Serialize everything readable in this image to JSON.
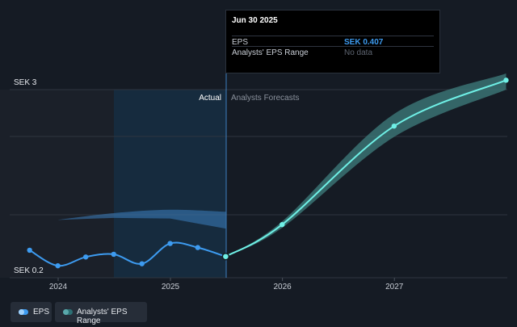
{
  "tooltip": {
    "date": "Jun 30 2025",
    "rows": [
      {
        "label": "EPS",
        "value": "SEK 0.407",
        "color": "#3d9bf0"
      },
      {
        "label": "Analysts' EPS Range",
        "value": "No data",
        "color": "#5d6470"
      }
    ]
  },
  "y_axis": {
    "top_label": "SEK 3",
    "bottom_label": "SEK 0.2"
  },
  "regions": {
    "actual_label": "Actual",
    "forecast_label": "Analysts Forecasts"
  },
  "legend": [
    {
      "label": "EPS",
      "color": "#3d9bf0",
      "dot_color": "#6cb4f5"
    },
    {
      "label": "Analysts' EPS Range",
      "color": "#2c6f73",
      "dot_color": "#3a8a8f"
    }
  ],
  "colors": {
    "actual": "#3d9bf0",
    "forecast": "#6ff0e6",
    "range_band": "#3f7f7d",
    "background": "#151b24",
    "shaded_past": "#1b2029",
    "shaded_highlight": "#17324a"
  },
  "chart_data": {
    "type": "line",
    "title": "",
    "xlabel": "",
    "ylabel": "",
    "x_ticks": [
      "2024",
      "2025",
      "2026",
      "2027"
    ],
    "ylim": [
      0.2,
      3
    ],
    "series": [
      {
        "name": "EPS",
        "points": [
          {
            "x": "2023-09-30",
            "y": 0.5
          },
          {
            "x": "2023-12-31",
            "y": 0.27
          },
          {
            "x": "2024-03-31",
            "y": 0.4
          },
          {
            "x": "2024-06-30",
            "y": 0.44
          },
          {
            "x": "2024-09-30",
            "y": 0.3
          },
          {
            "x": "2024-12-31",
            "y": 0.6
          },
          {
            "x": "2025-03-31",
            "y": 0.54
          },
          {
            "x": "2025-06-30",
            "y": 0.407
          }
        ]
      },
      {
        "name": "Analysts Forecasts",
        "points": [
          {
            "x": "2025-06-30",
            "y": 0.407
          },
          {
            "x": "2025-12-31",
            "y": 0.88
          },
          {
            "x": "2026-12-31",
            "y": 2.34
          },
          {
            "x": "2027-12-31",
            "y": 3.02
          }
        ]
      },
      {
        "name": "Analysts' EPS Range",
        "points_high": [
          {
            "x": "2023-12-31",
            "y": 0.95
          },
          {
            "x": "2024-06-30",
            "y": 1.05
          },
          {
            "x": "2024-12-31",
            "y": 1.1
          },
          {
            "x": "2025-06-30",
            "y": 1.07
          },
          {
            "x": "2026-12-31",
            "y": 2.52
          },
          {
            "x": "2027-12-31",
            "y": 3.12
          }
        ],
        "points_low": [
          {
            "x": "2024-06-30",
            "y": 0.98
          },
          {
            "x": "2024-12-31",
            "y": 0.97
          },
          {
            "x": "2025-06-30",
            "y": 0.82
          },
          {
            "x": "2026-12-31",
            "y": 2.18
          },
          {
            "x": "2027-12-31",
            "y": 2.88
          }
        ]
      }
    ],
    "highlight_date": "2025-06-30"
  }
}
